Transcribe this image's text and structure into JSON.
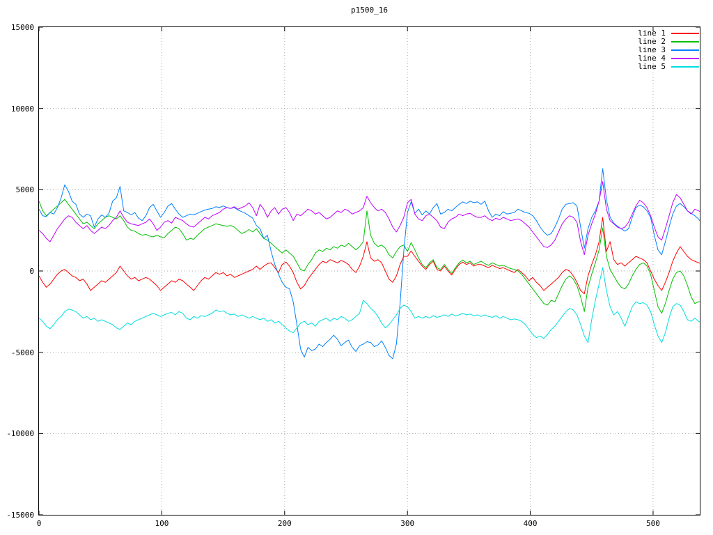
{
  "chart_data": {
    "type": "line",
    "title": "p1500_16",
    "xlabel": "",
    "ylabel": "",
    "xlim": [
      0,
      538
    ],
    "ylim": [
      -15000,
      15000
    ],
    "x_ticks": [
      0,
      100,
      200,
      300,
      400,
      500
    ],
    "y_ticks": [
      -15000,
      -10000,
      -5000,
      0,
      5000,
      10000,
      15000
    ],
    "grid": true,
    "grid_color": "#a8a8a8",
    "axis_color": "#000000",
    "legend_position": "top-right",
    "x_start": 0,
    "x_step": 3,
    "series": [
      {
        "name": "line 1",
        "color": "#ff0000",
        "values": [
          -300,
          -700,
          -1000,
          -800,
          -500,
          -200,
          0,
          100,
          -100,
          -300,
          -400,
          -600,
          -500,
          -800,
          -1200,
          -1000,
          -800,
          -600,
          -700,
          -500,
          -300,
          -100,
          300,
          0,
          -300,
          -500,
          -400,
          -600,
          -500,
          -400,
          -500,
          -700,
          -900,
          -1200,
          -1000,
          -800,
          -600,
          -700,
          -500,
          -600,
          -800,
          -1000,
          -1200,
          -900,
          -600,
          -400,
          -500,
          -300,
          -100,
          -200,
          -100,
          -300,
          -200,
          -400,
          -300,
          -200,
          -100,
          0,
          100,
          300,
          100,
          300,
          450,
          500,
          200,
          -100,
          400,
          550,
          300,
          -100,
          -700,
          -1100,
          -900,
          -500,
          -200,
          100,
          400,
          600,
          500,
          700,
          600,
          500,
          650,
          550,
          400,
          100,
          -100,
          300,
          900,
          1800,
          800,
          600,
          700,
          500,
          0,
          -500,
          -700,
          -300,
          400,
          900,
          900,
          1240,
          900,
          600,
          300,
          100,
          400,
          600,
          100,
          0,
          300,
          0,
          -250,
          100,
          400,
          550,
          400,
          500,
          300,
          400,
          400,
          300,
          200,
          350,
          250,
          150,
          200,
          100,
          0,
          -100,
          100,
          -100,
          -300,
          -600,
          -400,
          -700,
          -900,
          -1200,
          -1000,
          -800,
          -600,
          -400,
          -100,
          100,
          0,
          -300,
          -700,
          -1200,
          -1400,
          -300,
          400,
          1000,
          1800,
          3300,
          1200,
          1800,
          700,
          400,
          500,
          300,
          500,
          700,
          900,
          800,
          700,
          500,
          0,
          -500,
          -900,
          -1200,
          -700,
          -100,
          600,
          1100,
          1500,
          1200,
          900,
          700,
          600,
          500,
          450
        ]
      },
      {
        "name": "line 2",
        "color": "#00c000",
        "values": [
          4300,
          3700,
          3400,
          3600,
          3800,
          4000,
          4200,
          4400,
          4100,
          3800,
          3500,
          3200,
          2900,
          3000,
          2800,
          2600,
          2900,
          3100,
          3300,
          3400,
          3300,
          3200,
          3400,
          3100,
          2700,
          2500,
          2450,
          2300,
          2200,
          2250,
          2150,
          2100,
          2200,
          2100,
          2050,
          2300,
          2500,
          2700,
          2600,
          2300,
          1900,
          2000,
          1950,
          2200,
          2400,
          2600,
          2700,
          2800,
          2900,
          2850,
          2800,
          2750,
          2800,
          2700,
          2500,
          2300,
          2400,
          2550,
          2400,
          2600,
          2300,
          2000,
          1900,
          1700,
          1500,
          1300,
          1100,
          1300,
          1100,
          900,
          500,
          100,
          0,
          400,
          700,
          1100,
          1300,
          1200,
          1400,
          1300,
          1500,
          1400,
          1600,
          1500,
          1700,
          1500,
          1300,
          1500,
          1800,
          3700,
          2200,
          1700,
          1500,
          1600,
          1400,
          1000,
          800,
          1200,
          1500,
          1600,
          1200,
          1750,
          1300,
          800,
          400,
          200,
          500,
          700,
          200,
          100,
          400,
          100,
          -150,
          200,
          500,
          680,
          500,
          600,
          400,
          500,
          600,
          450,
          350,
          500,
          400,
          300,
          350,
          250,
          150,
          100,
          0,
          -200,
          -500,
          -800,
          -1100,
          -1400,
          -1700,
          -2000,
          -2100,
          -1800,
          -1900,
          -1400,
          -900,
          -500,
          -300,
          -500,
          -900,
          -1600,
          -2500,
          -1000,
          -200,
          500,
          1300,
          2650,
          900,
          100,
          -300,
          -700,
          -1000,
          -1100,
          -800,
          -300,
          100,
          400,
          500,
          300,
          -200,
          -1200,
          -2200,
          -2600,
          -2000,
          -1200,
          -500,
          -100,
          0,
          -300,
          -900,
          -1600,
          -2000,
          -1900,
          -1850
        ]
      },
      {
        "name": "line 3",
        "color": "#0080ff",
        "values": [
          3800,
          3400,
          3350,
          3600,
          3500,
          3900,
          4500,
          5300,
          4900,
          4300,
          4100,
          3500,
          3300,
          3500,
          3400,
          2700,
          3200,
          3450,
          3300,
          3550,
          4300,
          4500,
          5200,
          3700,
          3600,
          3450,
          3600,
          3250,
          3100,
          3400,
          3900,
          4100,
          3700,
          3300,
          3600,
          4000,
          4150,
          3800,
          3500,
          3300,
          3400,
          3500,
          3450,
          3550,
          3650,
          3750,
          3800,
          3850,
          3950,
          3900,
          4000,
          3900,
          3850,
          3900,
          3750,
          3650,
          3550,
          3400,
          3250,
          2800,
          2600,
          2000,
          2200,
          1200,
          400,
          -200,
          -700,
          -1000,
          -1100,
          -1900,
          -3300,
          -4800,
          -5300,
          -4700,
          -4900,
          -4800,
          -4500,
          -4650,
          -4400,
          -4200,
          -3950,
          -4200,
          -4600,
          -4400,
          -4250,
          -4700,
          -4950,
          -4600,
          -4500,
          -4350,
          -4400,
          -4650,
          -4550,
          -4300,
          -4700,
          -5200,
          -5400,
          -4500,
          -2000,
          1200,
          3600,
          4250,
          3550,
          3800,
          3450,
          3700,
          3500,
          3900,
          4150,
          3500,
          3600,
          3800,
          3700,
          3900,
          4100,
          4250,
          4150,
          4300,
          4200,
          4250,
          4100,
          4300,
          3700,
          3300,
          3500,
          3400,
          3650,
          3500,
          3550,
          3600,
          3800,
          3700,
          3600,
          3550,
          3400,
          3100,
          2700,
          2400,
          2200,
          2300,
          2700,
          3200,
          3800,
          4100,
          4150,
          4200,
          4000,
          2700,
          1400,
          2600,
          3300,
          3700,
          4300,
          6300,
          4400,
          3300,
          2950,
          2750,
          2600,
          2450,
          2600,
          3300,
          3900,
          4050,
          3950,
          3700,
          3300,
          2200,
          1300,
          1000,
          1800,
          2700,
          3500,
          4000,
          4150,
          3950,
          3700,
          3550,
          3400,
          3200,
          2900
        ]
      },
      {
        "name": "line 4",
        "color": "#c000ff",
        "values": [
          2500,
          2300,
          2000,
          1800,
          2200,
          2600,
          2900,
          3200,
          3400,
          3300,
          3000,
          2800,
          2600,
          2800,
          2500,
          2300,
          2500,
          2700,
          2600,
          2800,
          3100,
          3300,
          3700,
          3300,
          3000,
          2900,
          2850,
          2800,
          2900,
          3000,
          3200,
          2900,
          2500,
          2700,
          3000,
          3100,
          2950,
          3300,
          3200,
          3100,
          2900,
          2750,
          2700,
          2900,
          3100,
          3300,
          3200,
          3400,
          3500,
          3600,
          3800,
          3900,
          3850,
          3950,
          3800,
          3900,
          4000,
          4200,
          3900,
          3400,
          4100,
          3800,
          3300,
          3700,
          3900,
          3500,
          3800,
          3900,
          3600,
          3100,
          3500,
          3400,
          3600,
          3800,
          3700,
          3500,
          3600,
          3400,
          3200,
          3300,
          3500,
          3700,
          3600,
          3800,
          3700,
          3500,
          3600,
          3700,
          3900,
          4600,
          4200,
          3900,
          3700,
          3800,
          3600,
          3200,
          2700,
          2400,
          2800,
          3300,
          4200,
          4400,
          3500,
          3200,
          3100,
          3400,
          3500,
          3300,
          3100,
          2700,
          2600,
          3000,
          3200,
          3300,
          3500,
          3400,
          3500,
          3550,
          3400,
          3300,
          3300,
          3400,
          3200,
          3100,
          3250,
          3150,
          3300,
          3200,
          3100,
          3150,
          3200,
          3100,
          2900,
          2700,
          2400,
          2100,
          1800,
          1500,
          1450,
          1600,
          1900,
          2400,
          2900,
          3200,
          3400,
          3300,
          3000,
          1800,
          1000,
          2200,
          2900,
          3500,
          4300,
          5500,
          3800,
          3100,
          2900,
          2700,
          2600,
          2700,
          3000,
          3500,
          4000,
          4350,
          4200,
          3900,
          3400,
          2700,
          2100,
          1900,
          2600,
          3400,
          4200,
          4700,
          4500,
          4100,
          3700,
          3500,
          3800,
          3700,
          3600
        ]
      },
      {
        "name": "line 5",
        "color": "#00dddd",
        "values": [
          -2900,
          -3100,
          -3400,
          -3550,
          -3300,
          -3000,
          -2800,
          -2500,
          -2350,
          -2400,
          -2500,
          -2700,
          -2900,
          -2800,
          -3000,
          -2900,
          -3100,
          -3000,
          -3100,
          -3200,
          -3300,
          -3500,
          -3600,
          -3400,
          -3200,
          -3300,
          -3100,
          -3000,
          -2900,
          -2800,
          -2700,
          -2600,
          -2700,
          -2800,
          -2700,
          -2600,
          -2550,
          -2700,
          -2500,
          -2600,
          -2900,
          -3000,
          -2800,
          -2900,
          -2750,
          -2800,
          -2700,
          -2600,
          -2400,
          -2500,
          -2450,
          -2600,
          -2700,
          -2650,
          -2800,
          -2700,
          -2800,
          -2900,
          -2800,
          -2900,
          -3000,
          -2900,
          -3100,
          -3000,
          -3200,
          -3100,
          -3300,
          -3500,
          -3700,
          -3800,
          -3500,
          -3200,
          -3100,
          -3300,
          -3200,
          -3400,
          -3100,
          -3000,
          -2900,
          -3100,
          -2900,
          -3000,
          -2800,
          -2900,
          -3100,
          -3000,
          -2800,
          -2600,
          -1800,
          -2000,
          -2300,
          -2500,
          -2800,
          -3200,
          -3500,
          -3300,
          -3000,
          -2700,
          -2300,
          -2100,
          -2200,
          -2500,
          -2900,
          -2800,
          -2900,
          -2800,
          -2900,
          -2750,
          -2850,
          -2800,
          -2700,
          -2800,
          -2650,
          -2750,
          -2700,
          -2600,
          -2700,
          -2650,
          -2750,
          -2700,
          -2800,
          -2700,
          -2800,
          -2850,
          -2750,
          -2900,
          -2800,
          -2900,
          -3000,
          -2950,
          -3000,
          -3100,
          -3300,
          -3600,
          -3900,
          -4100,
          -4000,
          -4150,
          -3900,
          -3600,
          -3400,
          -3100,
          -2800,
          -2500,
          -2300,
          -2400,
          -2700,
          -3300,
          -4000,
          -4400,
          -3000,
          -1800,
          -800,
          200,
          -1200,
          -2200,
          -2700,
          -2500,
          -2900,
          -3400,
          -2800,
          -2200,
          -1900,
          -2000,
          -1950,
          -2100,
          -2500,
          -3300,
          -4000,
          -4400,
          -3800,
          -2900,
          -2200,
          -2000,
          -2100,
          -2500,
          -3000,
          -3100,
          -2900,
          -3100,
          -3200
        ]
      }
    ]
  },
  "legend": {
    "items": [
      {
        "label": "line 1",
        "color": "#ff0000"
      },
      {
        "label": "line 2",
        "color": "#00c000"
      },
      {
        "label": "line 3",
        "color": "#0080ff"
      },
      {
        "label": "line 4",
        "color": "#c000ff"
      },
      {
        "label": "line 5",
        "color": "#00dddd"
      }
    ]
  }
}
